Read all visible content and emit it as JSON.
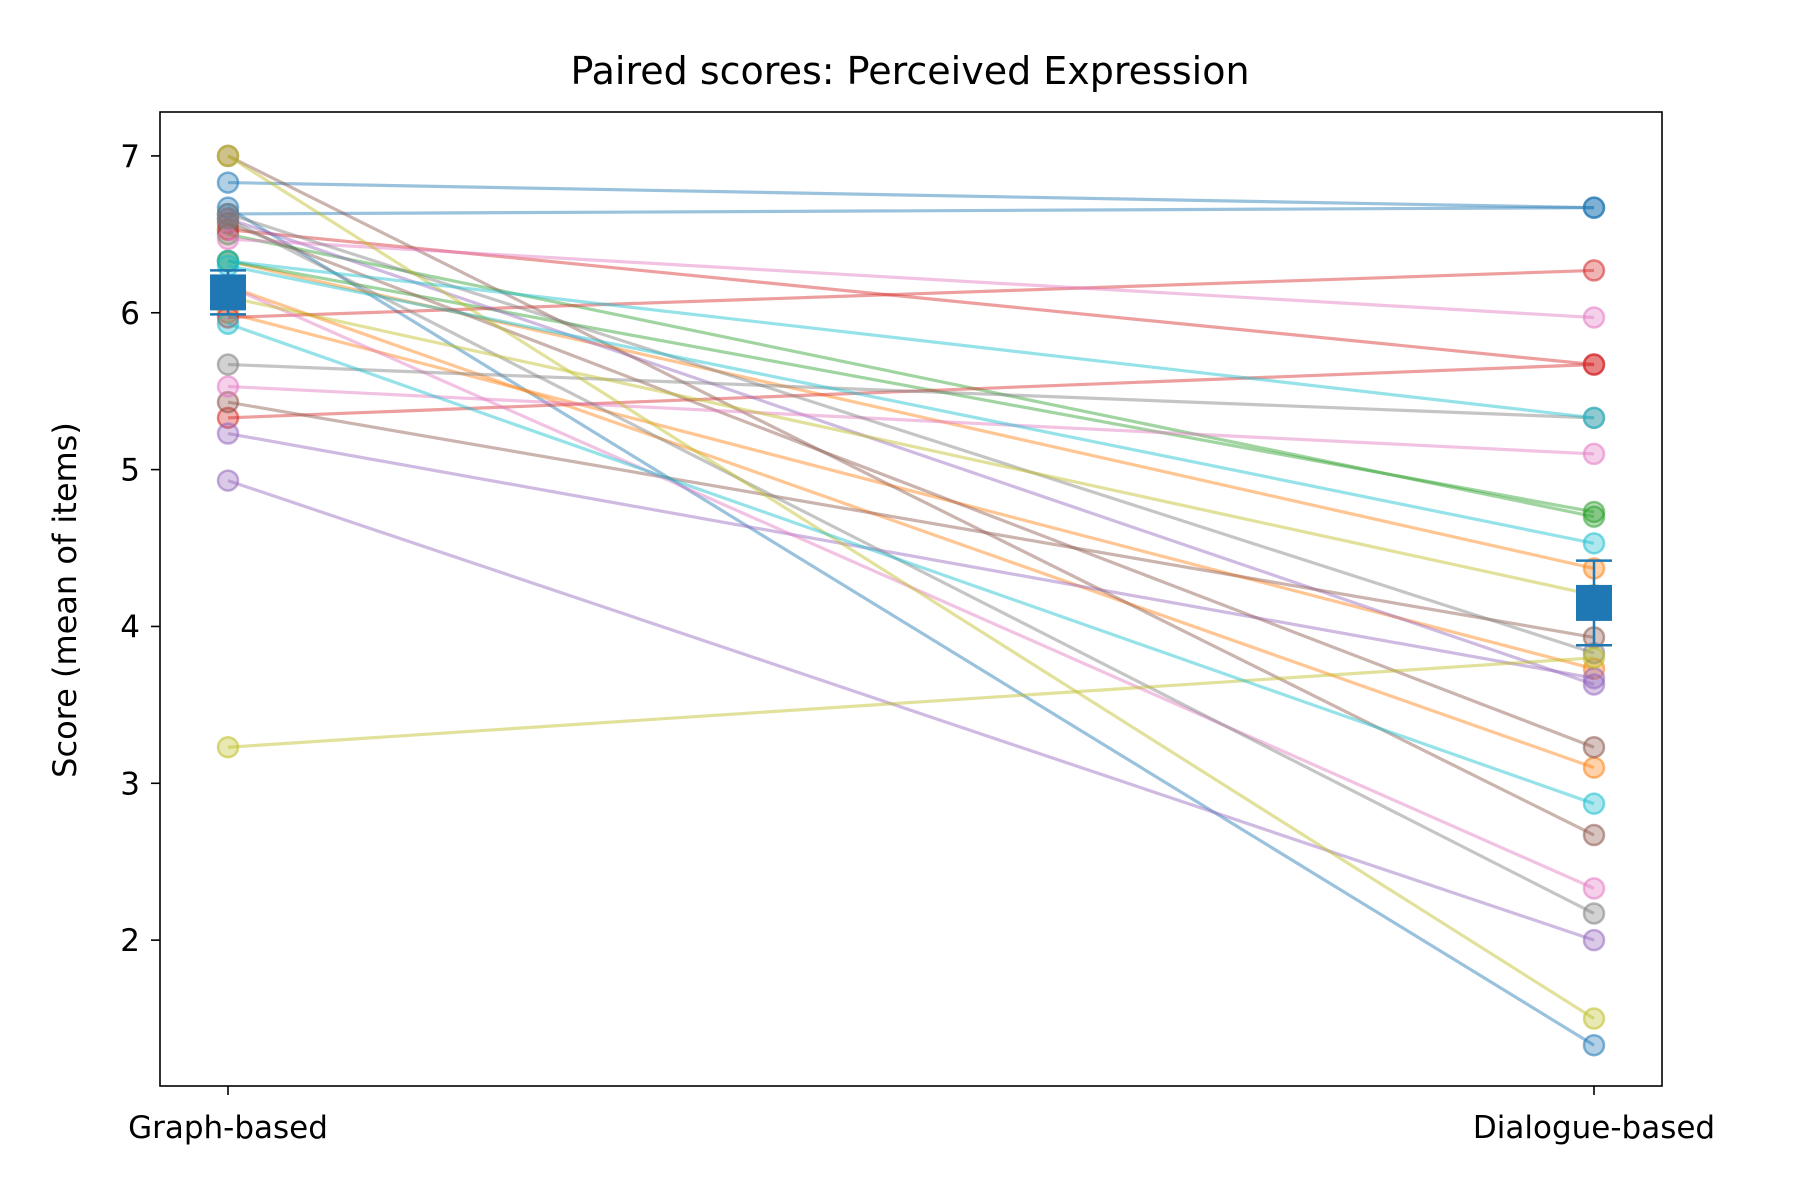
{
  "chart_data": {
    "type": "line",
    "title": "Paired scores: Perceived Expression",
    "xlabel": "",
    "ylabel": "Score (mean of items)",
    "categories": [
      "Graph-based",
      "Dialogue-based"
    ],
    "ylim": [
      1.07,
      7.28
    ],
    "yticks": [
      2,
      3,
      4,
      5,
      6,
      7
    ],
    "grid": false,
    "legend": "none",
    "series": [
      {
        "color": "#1f77b4",
        "values": [
          6.83,
          6.67
        ]
      },
      {
        "color": "#1f77b4",
        "values": [
          6.63,
          6.67
        ]
      },
      {
        "color": "#1f77b4",
        "values": [
          6.67,
          1.33
        ]
      },
      {
        "color": "#ff7f0e",
        "values": [
          6.33,
          4.37
        ]
      },
      {
        "color": "#ff7f0e",
        "values": [
          6.17,
          3.1
        ]
      },
      {
        "color": "#ff7f0e",
        "values": [
          6.0,
          3.73
        ]
      },
      {
        "color": "#2ca02c",
        "values": [
          6.33,
          4.73
        ]
      },
      {
        "color": "#2ca02c",
        "values": [
          6.5,
          4.7
        ]
      },
      {
        "color": "#d62728",
        "values": [
          5.97,
          6.27
        ]
      },
      {
        "color": "#d62728",
        "values": [
          6.53,
          5.67
        ]
      },
      {
        "color": "#d62728",
        "values": [
          5.33,
          5.67
        ]
      },
      {
        "color": "#9467bd",
        "values": [
          6.6,
          3.63
        ]
      },
      {
        "color": "#9467bd",
        "values": [
          5.23,
          3.67
        ]
      },
      {
        "color": "#9467bd",
        "values": [
          4.93,
          2.0
        ]
      },
      {
        "color": "#8c564b",
        "values": [
          5.43,
          3.93
        ]
      },
      {
        "color": "#8c564b",
        "values": [
          6.57,
          3.23
        ]
      },
      {
        "color": "#8c564b",
        "values": [
          7.0,
          2.67
        ]
      },
      {
        "color": "#e377c2",
        "values": [
          6.47,
          5.97
        ]
      },
      {
        "color": "#e377c2",
        "values": [
          5.53,
          5.1
        ]
      },
      {
        "color": "#e377c2",
        "values": [
          6.17,
          2.33
        ]
      },
      {
        "color": "#7f7f7f",
        "values": [
          5.67,
          5.33
        ]
      },
      {
        "color": "#7f7f7f",
        "values": [
          6.63,
          3.83
        ]
      },
      {
        "color": "#7f7f7f",
        "values": [
          6.6,
          2.17
        ]
      },
      {
        "color": "#bcbd22",
        "values": [
          6.1,
          4.2
        ]
      },
      {
        "color": "#bcbd22",
        "values": [
          3.23,
          3.8
        ]
      },
      {
        "color": "#bcbd22",
        "values": [
          7.0,
          1.5
        ]
      },
      {
        "color": "#17becf",
        "values": [
          6.33,
          5.33
        ]
      },
      {
        "color": "#17becf",
        "values": [
          6.3,
          4.53
        ]
      },
      {
        "color": "#17becf",
        "values": [
          5.93,
          2.87
        ]
      }
    ],
    "mean": {
      "color": "#1f77b4",
      "values": [
        6.13,
        4.15
      ],
      "error": [
        0.14,
        0.27
      ]
    }
  }
}
